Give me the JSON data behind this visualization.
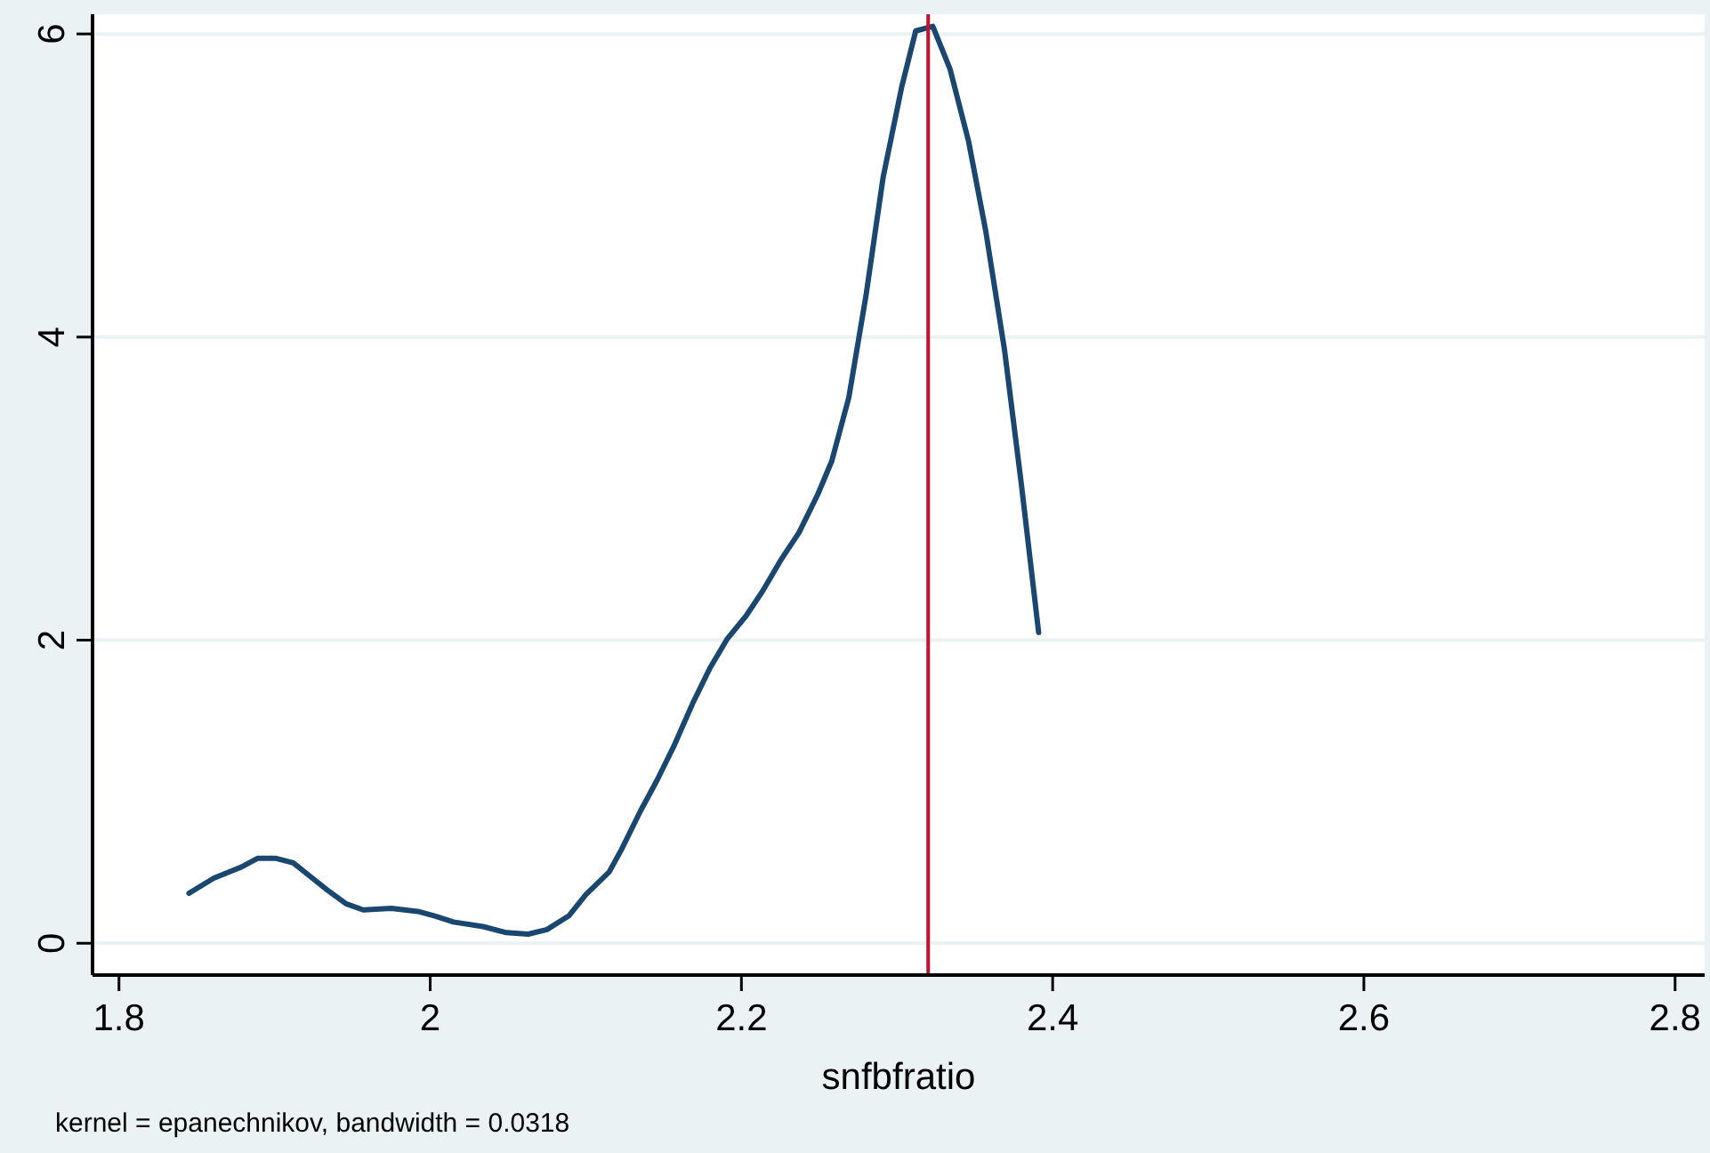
{
  "chart_data": {
    "type": "line",
    "xlabel": "snfbfratio",
    "annotations": [
      "kernel = epanechnikov, bandwidth = 0.0318"
    ],
    "xlim": [
      1.783,
      2.819
    ],
    "ylim": [
      -0.21,
      6.13
    ],
    "xticks": [
      1.8,
      2,
      2.2,
      2.4,
      2.6,
      2.8
    ],
    "yticks": [
      0,
      2,
      4,
      6
    ],
    "grid": "y",
    "ref_lines": [
      {
        "axis": "x",
        "value": 2.32,
        "label": null,
        "color": "#c8102e"
      }
    ],
    "series": [
      {
        "color": "#1a476f",
        "x": [
          1.845,
          1.861,
          1.878,
          1.889,
          1.901,
          1.912,
          1.923,
          1.934,
          1.946,
          1.957,
          1.975,
          1.992,
          2.003,
          2.015,
          2.034,
          2.049,
          2.063,
          2.075,
          2.089,
          2.1,
          2.115,
          2.123,
          2.135,
          2.146,
          2.157,
          2.169,
          2.18,
          2.191,
          2.203,
          2.214,
          2.226,
          2.237,
          2.249,
          2.258,
          2.269,
          2.28,
          2.291,
          2.303,
          2.312,
          2.323,
          2.334,
          2.346,
          2.357,
          2.369,
          2.38,
          2.391
        ],
        "values": [
          0.33,
          0.43,
          0.5,
          0.56,
          0.56,
          0.53,
          0.44,
          0.35,
          0.26,
          0.22,
          0.23,
          0.21,
          0.18,
          0.14,
          0.11,
          0.07,
          0.06,
          0.09,
          0.18,
          0.32,
          0.47,
          0.62,
          0.87,
          1.08,
          1.31,
          1.59,
          1.82,
          2.01,
          2.16,
          2.33,
          2.54,
          2.71,
          2.96,
          3.18,
          3.6,
          4.27,
          5.05,
          5.65,
          6.02,
          6.05,
          5.77,
          5.29,
          4.7,
          3.92,
          3.02,
          2.05
        ]
      }
    ]
  }
}
